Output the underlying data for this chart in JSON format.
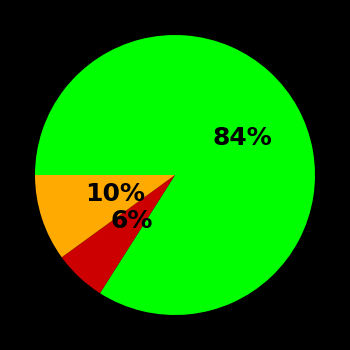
{
  "slices": [
    84,
    6,
    10
  ],
  "colors": [
    "#00ff00",
    "#cc0000",
    "#ffaa00"
  ],
  "labels": [
    "84%",
    "6%",
    "10%"
  ],
  "startangle": 180,
  "background_color": "#000000",
  "label_fontsize": 18,
  "label_fontweight": "bold",
  "label_color": "#000000",
  "label_radii": [
    0.55,
    0.45,
    0.45
  ]
}
